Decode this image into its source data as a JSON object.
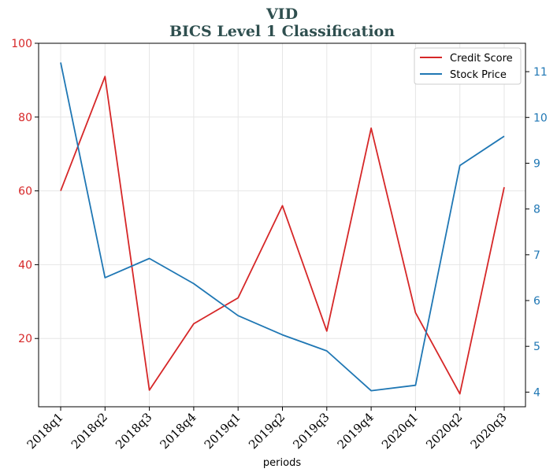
{
  "chart_data": {
    "type": "line",
    "title": "VID",
    "subtitle": "BICS Level 1 Classification",
    "xlabel": "periods",
    "ylabel_left": "",
    "ylabel_right": "",
    "categories": [
      "2018q1",
      "2018q2",
      "2018q3",
      "2018q4",
      "2019q1",
      "2019q2",
      "2019q3",
      "2019q4",
      "2020q1",
      "2020q2",
      "2020q3"
    ],
    "left_axis": {
      "ticks": [
        20,
        40,
        60,
        80,
        100
      ],
      "ylim": [
        1.5,
        100
      ],
      "color": "#d62728"
    },
    "right_axis": {
      "ticks": [
        4,
        5,
        6,
        7,
        8,
        9,
        10,
        11
      ],
      "ylim": [
        3.68,
        11.62
      ],
      "color": "#1f77b4"
    },
    "series": [
      {
        "name": "Credit Score",
        "axis": "left",
        "color": "#d62728",
        "values": [
          60,
          91,
          6,
          24,
          31,
          56,
          22,
          77,
          27,
          5,
          61
        ]
      },
      {
        "name": "Stock Price",
        "axis": "right",
        "color": "#1f77b4",
        "values": [
          11.2,
          6.5,
          6.92,
          6.37,
          5.67,
          5.25,
          4.9,
          4.03,
          4.15,
          8.95,
          9.59
        ]
      }
    ],
    "grid": true,
    "legend": "top-right"
  }
}
